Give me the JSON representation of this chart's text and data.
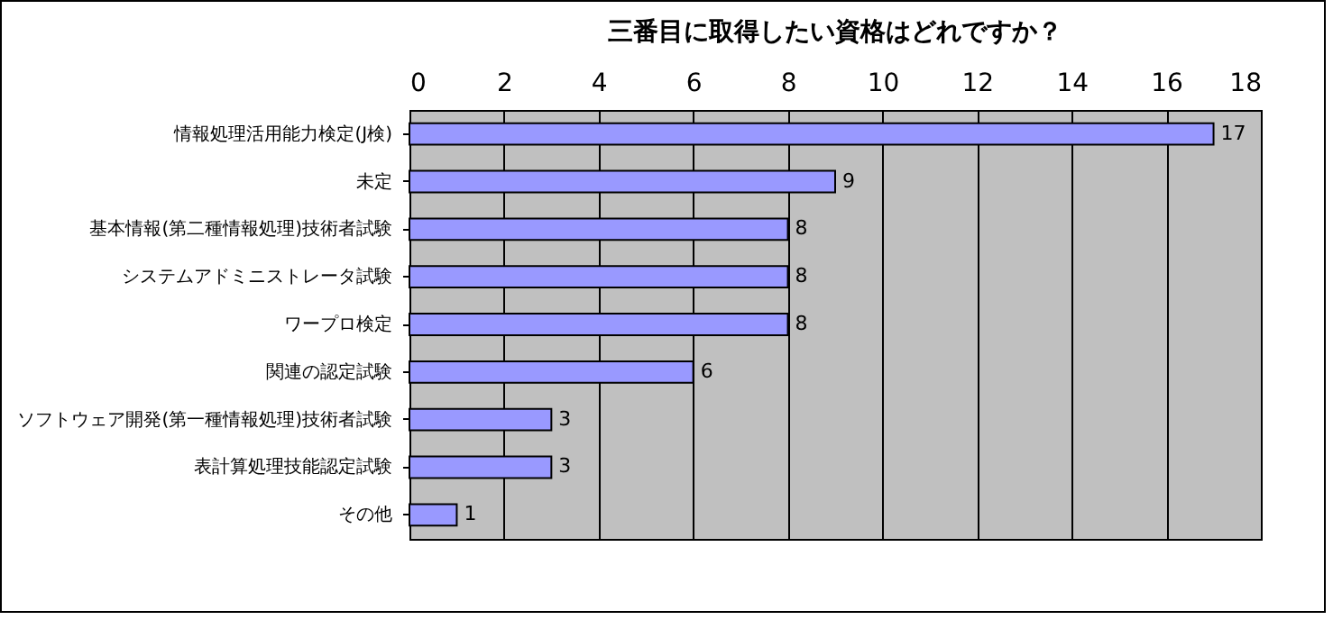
{
  "chart_data": {
    "type": "bar",
    "orientation": "horizontal",
    "title": "三番目に取得したい資格はどれですか？",
    "categories": [
      "情報処理活用能力検定(J検)",
      "未定",
      "基本情報(第二種情報処理)技術者試験",
      "システムアドミニストレータ試験",
      "ワープロ検定",
      "関連の認定試験",
      "ソフトウェア開発(第一種情報処理)技術者試験",
      "表計算処理技能認定試験",
      "その他"
    ],
    "values": [
      17,
      9,
      8,
      8,
      8,
      6,
      3,
      3,
      1
    ],
    "color": "#9999ff",
    "xlim": [
      0,
      18
    ],
    "xticks": [
      0,
      2,
      4,
      6,
      8,
      10,
      12,
      14,
      16,
      18
    ],
    "grid": "x",
    "data_labels": true
  }
}
